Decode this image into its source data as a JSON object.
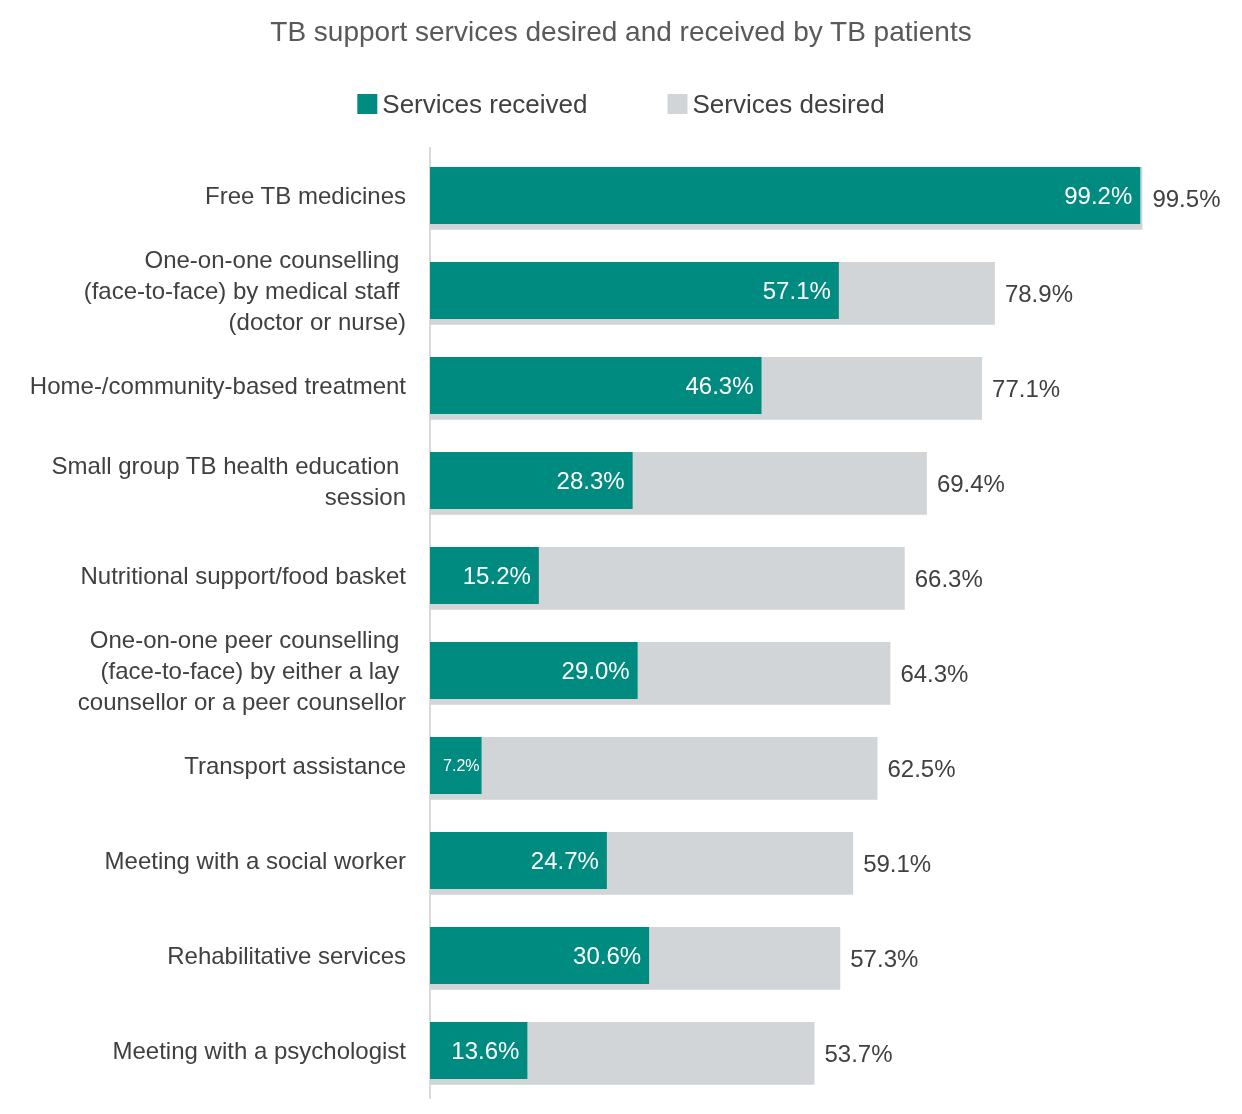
{
  "chart_data": {
    "type": "bar",
    "orientation": "horizontal",
    "title": "TB support services desired and received by TB patients",
    "categories": [
      "Free TB medicines",
      "One-on-one counselling (face-to-face) by medical staff (doctor or nurse)",
      "Home-/community-based treatment",
      "Small group TB health education session",
      "Nutritional support/food basket",
      "One-on-one peer counselling (face-to-face) by either a lay counsellor or a peer counsellor",
      "Transport assistance",
      "Meeting with a social worker",
      "Rehabilitative services",
      "Meeting with a psychologist"
    ],
    "series": [
      {
        "name": "Services received",
        "color": "#008b80",
        "values": [
          99.2,
          57.1,
          46.3,
          28.3,
          15.2,
          29.0,
          7.2,
          24.7,
          30.6,
          13.6
        ],
        "value_labels": [
          "99.2%",
          "57.1%",
          "46.3%",
          "28.3%",
          "15.2%",
          "29.0%",
          "7.2%",
          "24.7%",
          "30.6%",
          "13.6%"
        ]
      },
      {
        "name": "Services desired",
        "color": "#d1d5d7",
        "values": [
          99.5,
          78.9,
          77.1,
          69.4,
          66.3,
          64.3,
          62.5,
          59.1,
          57.3,
          53.7
        ],
        "value_labels": [
          "99.5%",
          "78.9%",
          "77.1%",
          "69.4%",
          "66.3%",
          "64.3%",
          "62.5%",
          "59.1%",
          "57.3%",
          "53.7%"
        ]
      }
    ],
    "tick_labels": "y",
    "legend": "top",
    "grid": false
  }
}
